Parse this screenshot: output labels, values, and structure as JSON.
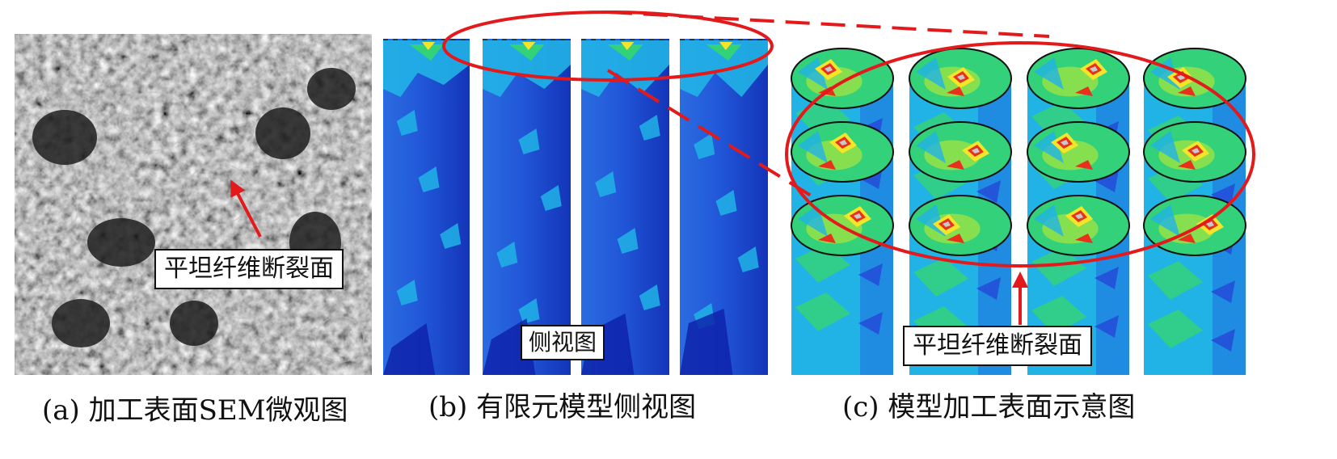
{
  "panel_a": {
    "callout": "平坦纤维断裂面",
    "caption": "(a)  加工表面SEM微观图"
  },
  "panel_b": {
    "callout": "侧视图",
    "caption": "(b)  有限元模型侧视图"
  },
  "panel_c": {
    "callout": "平坦纤维断裂面",
    "caption": "(c)  模型加工表面示意图"
  },
  "colors": {
    "annotation_red": "#e31a1c",
    "fe_blue": "#1f3fd6",
    "fe_cyan": "#21b3e6",
    "fe_green": "#32d17a",
    "fe_yellow": "#f5e52a",
    "fe_red": "#e8311c",
    "fe_gray": "#c8c8c8"
  }
}
